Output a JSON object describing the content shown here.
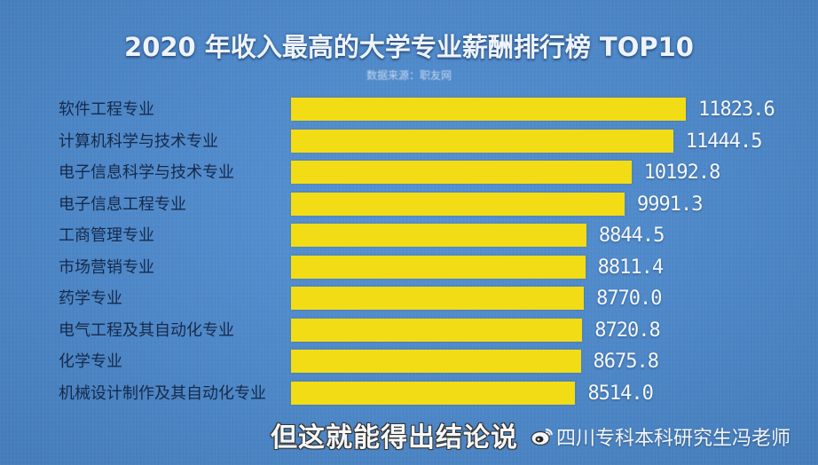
{
  "chart_data": {
    "type": "bar",
    "orientation": "horizontal",
    "title": "2020 年收入最高的大学专业薪酬排行榜 TOP10",
    "subtitle": "数据来源：职友网",
    "xlabel": "",
    "ylabel": "",
    "grid": false,
    "legend": null,
    "bar_color": "#f2dc16",
    "background_color": "#4c86c6",
    "categories": [
      "软件工程专业",
      "计算机科学与技术专业",
      "电子信息科学与技术专业",
      "电子信息工程专业",
      "工商管理专业",
      "市场营销专业",
      "药学专业",
      "电气工程及其自动化专业",
      "化学专业",
      "机械设计制作及其自动化专业"
    ],
    "values": [
      11823.6,
      11444.5,
      10192.8,
      9991.3,
      8844.5,
      8811.4,
      8770.0,
      8720.8,
      8675.8,
      8514.0
    ],
    "value_labels": [
      "11823.6",
      "11444.5",
      "10192.8",
      "9991.3",
      "8844.5",
      "8811.4",
      "8770.0",
      "8720.8",
      "8675.8",
      "8514.0"
    ],
    "xlim": [
      0,
      11823.6
    ]
  },
  "overlay": {
    "caption": "但这就能得出结论说",
    "watermark": "四川专科本科研究生冯老师",
    "watermark_icon": "weibo-icon"
  }
}
